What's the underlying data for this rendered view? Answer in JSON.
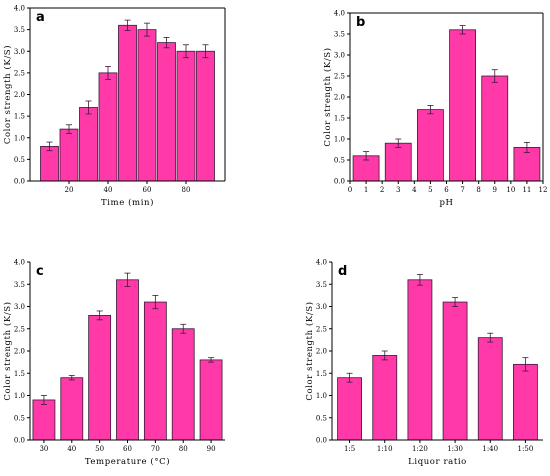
{
  "colors": {
    "bar": "#ff3aa8",
    "edge": "#3a1a3a"
  },
  "chart_data": [
    {
      "panel": "a",
      "type": "bar",
      "xlabel": "Time (min)",
      "ylabel": "Color strength (K/S)",
      "ylim": [
        0,
        4.0
      ],
      "yticks": [
        "0.0",
        "0.5",
        "1.0",
        "1.5",
        "2.0",
        "2.5",
        "3.0",
        "3.5",
        "4.0"
      ],
      "xlim": [
        0,
        100
      ],
      "xticks": [
        "20",
        "40",
        "60",
        "80"
      ],
      "x": [
        10,
        20,
        30,
        40,
        50,
        60,
        70,
        80,
        90
      ],
      "values": [
        0.8,
        1.2,
        1.7,
        2.5,
        3.6,
        3.5,
        3.2,
        3.0,
        3.0
      ],
      "errors": [
        0.1,
        0.1,
        0.15,
        0.15,
        0.12,
        0.15,
        0.12,
        0.15,
        0.15
      ]
    },
    {
      "panel": "b",
      "type": "bar",
      "xlabel": "pH",
      "ylabel": "Color strength (K/S)",
      "ylim": [
        0,
        4.0
      ],
      "yticks": [
        "0.0",
        "0.5",
        "1.0",
        "1.5",
        "2.0",
        "2.5",
        "3.0",
        "3.5",
        "4.0"
      ],
      "xlim": [
        0,
        12
      ],
      "xticks": [
        "0",
        "1",
        "2",
        "3",
        "4",
        "5",
        "6",
        "7",
        "8",
        "9",
        "10",
        "11",
        "12"
      ],
      "x": [
        1,
        3,
        5,
        7,
        9,
        11
      ],
      "values": [
        0.6,
        0.9,
        1.7,
        3.6,
        2.5,
        0.8
      ],
      "errors": [
        0.1,
        0.1,
        0.1,
        0.1,
        0.15,
        0.12
      ]
    },
    {
      "panel": "c",
      "type": "bar",
      "xlabel": "Temperature (°C)",
      "ylabel": "Color strength (K/S)",
      "ylim": [
        0,
        4.0
      ],
      "yticks": [
        "0.0",
        "0.5",
        "1.0",
        "1.5",
        "2.0",
        "2.5",
        "3.0",
        "3.5",
        "4.0"
      ],
      "categories": [
        "30",
        "40",
        "50",
        "60",
        "70",
        "80",
        "90"
      ],
      "values": [
        0.9,
        1.4,
        2.8,
        3.6,
        3.1,
        2.5,
        1.8
      ],
      "errors": [
        0.1,
        0.05,
        0.1,
        0.15,
        0.15,
        0.1,
        0.05
      ]
    },
    {
      "panel": "d",
      "type": "bar",
      "xlabel": "Liquor ratio",
      "ylabel": "Color strength (K/S)",
      "ylim": [
        0,
        4.0
      ],
      "yticks": [
        "0.0",
        "0.5",
        "1.0",
        "1.5",
        "2.0",
        "2.5",
        "3.0",
        "3.5",
        "4.0"
      ],
      "categories": [
        "1:5",
        "1:10",
        "1:20",
        "1:30",
        "1:40",
        "1:50"
      ],
      "values": [
        1.4,
        1.9,
        3.6,
        3.1,
        2.3,
        1.7
      ],
      "errors": [
        0.1,
        0.1,
        0.12,
        0.1,
        0.1,
        0.15
      ]
    }
  ]
}
